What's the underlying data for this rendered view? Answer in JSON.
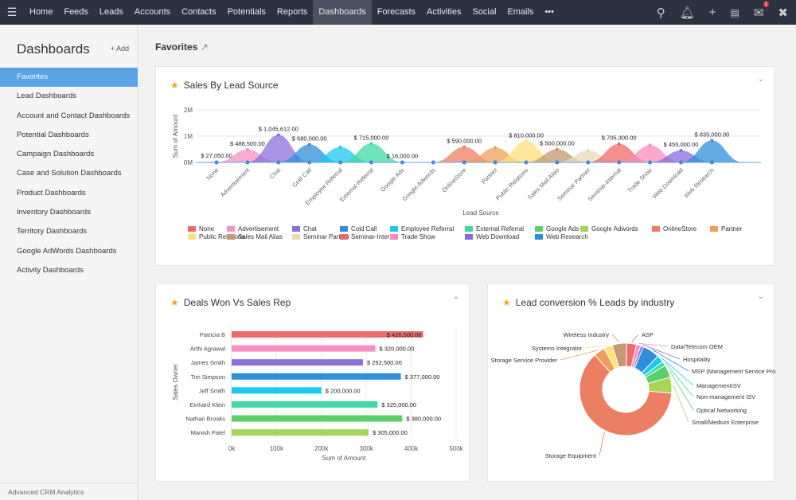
{
  "nav": {
    "tabs": [
      "Home",
      "Feeds",
      "Leads",
      "Accounts",
      "Contacts",
      "Potentials",
      "Reports",
      "Dashboards",
      "Forecasts",
      "Activities",
      "Social",
      "Emails"
    ],
    "active": "Dashboards",
    "more": "•••",
    "mail_badge": "1",
    "icons": [
      "search-icon",
      "bell-icon",
      "plus-icon",
      "calendar-icon",
      "mail-icon",
      "tools-icon"
    ]
  },
  "sidebar": {
    "title": "Dashboards",
    "add_label": "+ Add",
    "items": [
      "Favorites",
      "Lead Dashboards",
      "Account and Contact Dashboards",
      "Potential Dashboards",
      "Campaign Dashboards",
      "Case and Solution Dashboards",
      "Product Dashboards",
      "Inventory Dashboards",
      "Territory Dashboards",
      "Google AdWords Dashboards",
      "Activity Dashboards"
    ],
    "active": "Favorites",
    "footer": "Advanced CRM Analytics"
  },
  "main": {
    "heading": "Favorites"
  },
  "chart_data": [
    {
      "type": "area",
      "title": "Sales By Lead Source",
      "xlabel": "Lead Source",
      "ylabel": "Sum of Amount",
      "yticks": [
        "0M",
        "1M",
        "2M"
      ],
      "ylim": [
        0,
        2000000
      ],
      "legend": "bottom",
      "categories": [
        "None",
        "Advertisement",
        "Chat",
        "Cold Call",
        "Employee Referral",
        "External Referral",
        "Google Ads",
        "Google Adwords",
        "OnlineStore",
        "Partner",
        "Public Relations",
        "Sales Mail Alias",
        "Seminar Partner",
        "Seminar-Internal",
        "Trade Show",
        "Web Download",
        "Web Research"
      ],
      "values": [
        27050,
        488500,
        1045612,
        680000,
        580000,
        715000,
        16000,
        0,
        590000,
        560000,
        810000,
        500000,
        450000,
        705300,
        650000,
        455000,
        835000
      ],
      "labels": [
        "$ 27,050.00",
        "$ 488,500.00",
        "$ 1,045,612.00",
        "$ 680,000.00",
        null,
        "$ 715,000.00",
        "$ 16,000.00",
        null,
        "$ 590,000.00",
        null,
        "$ 810,000.00",
        "$ 500,000.00",
        null,
        "$ 705,300.00",
        null,
        "$ 455,000.00",
        "$ 835,000.00"
      ],
      "colors": [
        "#ef6b6b",
        "#f78fc0",
        "#8c6fd9",
        "#2f8fdc",
        "#19c9f0",
        "#3ddba3",
        "#5ccf6b",
        "#a8d45a",
        "#ec7f61",
        "#eea05a",
        "#fde27a",
        "#c39872",
        "#eadbb8",
        "#ee6b6b",
        "#f98bbb",
        "#8a6ad9",
        "#2f8fdc"
      ]
    },
    {
      "type": "bar",
      "title": "Deals Won Vs Sales Rep",
      "xlabel": "Sum of Amount",
      "ylabel": "Sales Owner",
      "xticks": [
        "0k",
        "100k",
        "200k",
        "300k",
        "400k",
        "500k"
      ],
      "xlim": [
        0,
        500000
      ],
      "categories": [
        "Patricia B",
        "Arthi Agrawal",
        "James Smith",
        "Tim Simpson",
        "Jeff Smith",
        "Einhard Klein",
        "Nathan Brooks",
        "Manish Patel"
      ],
      "values": [
        426500,
        320000,
        292500,
        377000,
        200000,
        325000,
        380000,
        305000
      ],
      "labels": [
        "$ 426,500.00",
        "$ 320,000.00",
        "$ 292,500.00",
        "$ 377,000.00",
        "$ 200,000.00",
        "$ 325,000.00",
        "$ 380,000.00",
        "$ 305,000.00"
      ],
      "colors": [
        "#ef6b6b",
        "#f78fc0",
        "#8c6fd9",
        "#2f8fdc",
        "#19c9f0",
        "#3ddba3",
        "#5ccf6b",
        "#a8d45a"
      ]
    },
    {
      "type": "pie",
      "donut": true,
      "title": "Lead conversion % Leads by industry",
      "categories": [
        "ASP",
        "Data/Telecom OEM",
        "Hospitality",
        "MSP (Management Service Provider)",
        "ManagementISV",
        "Non-management ISV",
        "Optical Networking",
        "Small/Medium Enterprise",
        "Storage Equipment",
        "Storage Service Provider",
        "Systems Integrator",
        "Wireless Industry"
      ],
      "values": [
        3.5,
        1.5,
        1,
        6,
        2.5,
        1.5,
        4.5,
        5.5,
        62,
        4,
        3,
        5
      ],
      "colors": [
        "#ef6b6b",
        "#f78fc0",
        "#8c6fd9",
        "#2f8fdc",
        "#19c9f0",
        "#3ddba3",
        "#5ccf6b",
        "#a8d45a",
        "#ec7f61",
        "#eea05a",
        "#fde27a",
        "#c39872"
      ]
    }
  ]
}
